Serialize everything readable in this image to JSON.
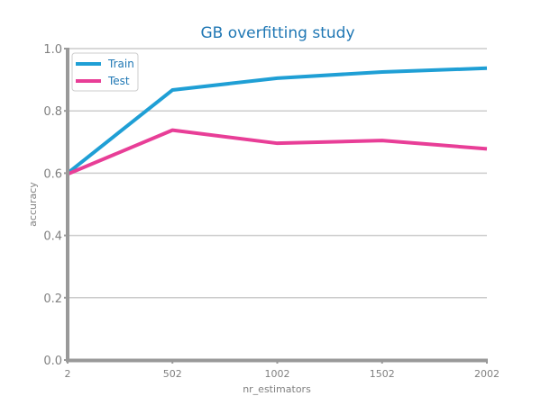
{
  "chart_data": {
    "type": "line",
    "title": "GB overfitting study",
    "xlabel": "nr_estimators",
    "ylabel": "accuracy",
    "x": [
      2,
      502,
      1002,
      1502,
      2002
    ],
    "x_ticks": [
      "2",
      "502",
      "1002",
      "1502",
      "2002"
    ],
    "y_ticks": [
      "0.0",
      "0.2",
      "0.4",
      "0.6",
      "0.8",
      "1.0"
    ],
    "xlim": [
      2,
      2002
    ],
    "ylim": [
      0,
      1
    ],
    "grid": "horizontal",
    "legend_position": "top-left",
    "series": [
      {
        "name": "Train",
        "color": "#1f9fd5",
        "values": [
          0.6,
          0.867,
          0.905,
          0.925,
          0.937
        ]
      },
      {
        "name": "Test",
        "color": "#e83e97",
        "values": [
          0.597,
          0.738,
          0.696,
          0.705,
          0.678
        ]
      }
    ],
    "colors": {
      "title": "#1f77b4",
      "axis": "#999999",
      "grid": "#cccccc",
      "text": "#808080"
    }
  }
}
